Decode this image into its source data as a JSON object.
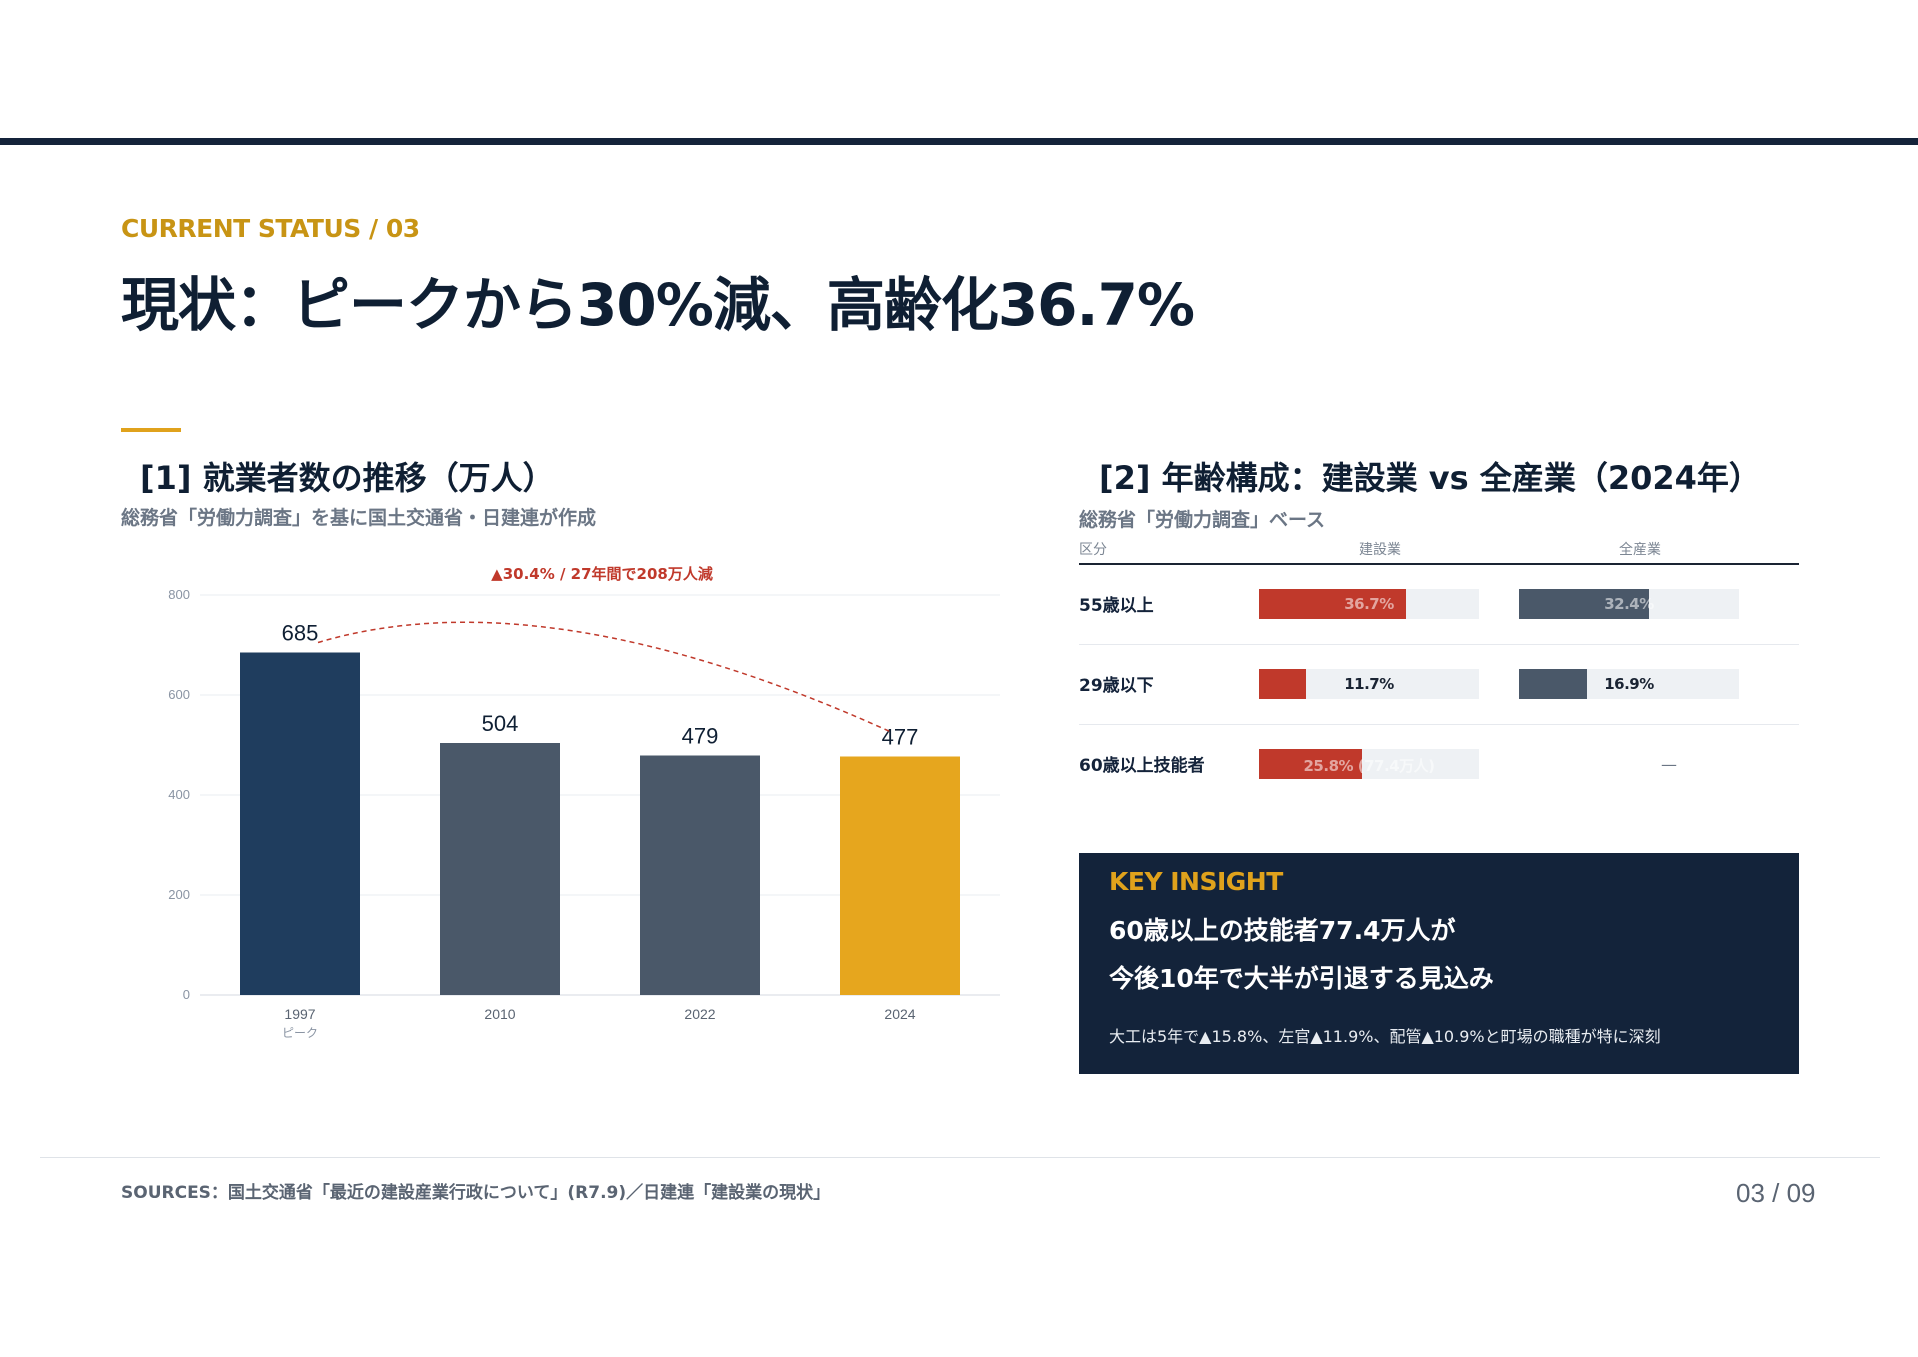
{
  "header": {
    "eyebrow": "CURRENT STATUS / 03",
    "title": "現状：ピークから30%減、高齢化36.7%"
  },
  "section1": {
    "title": "[1] 就業者数の推移（万人）",
    "subtitle": "総務省「労働力調査」を基に国土交通省・日建連が作成"
  },
  "chart_data": {
    "type": "bar",
    "title": "[1] 就業者数の推移（万人）",
    "categories": [
      "1997",
      "2010",
      "2022",
      "2024"
    ],
    "category_sublabels": [
      "ピーク",
      "",
      "",
      ""
    ],
    "values": [
      685,
      504,
      479,
      477
    ],
    "colors": [
      "#1f3d5e",
      "#4a5869",
      "#4a5869",
      "#e6a61e"
    ],
    "ylim": [
      0,
      800
    ],
    "yticks": [
      0,
      200,
      400,
      600,
      800
    ],
    "grid": true,
    "annotation": "▲30.4% / 27年間で208万人減"
  },
  "section2": {
    "title": "[2] 年齢構成：建設業 vs 全産業（2024年）",
    "subtitle": "総務省「労働力調査」ベース",
    "headers": [
      "区分",
      "建設業",
      "全産業"
    ],
    "rows": [
      {
        "label": "55歳以上",
        "construction": {
          "text": "36.7%",
          "value": 0.367
        },
        "all": {
          "text": "32.4%",
          "value": 0.324
        }
      },
      {
        "label": "29歳以下",
        "construction": {
          "text": "11.7%",
          "value": 0.117
        },
        "all": {
          "text": "16.9%",
          "value": 0.169
        }
      },
      {
        "label": "60歳以上技能者",
        "construction": {
          "text": "25.8% (77.4万人)",
          "value": 0.258
        },
        "all": {
          "text": "—"
        }
      }
    ],
    "colors": {
      "construction": "#c0392b",
      "all": "#4a5869"
    }
  },
  "insight": {
    "tag": "KEY INSIGHT",
    "line1": "60歳以上の技能者77.4万人が",
    "line2": "今後10年で大半が引退する見込み",
    "note": "大工は5年で▲15.8%、左官▲11.9%、配管▲10.9%と町場の職種が特に深刻"
  },
  "footer": {
    "sources": "SOURCES：国土交通省「最近の建設産業行政について」(R7.9)／日建連「建設業の現状」",
    "page": "03 / 09"
  }
}
